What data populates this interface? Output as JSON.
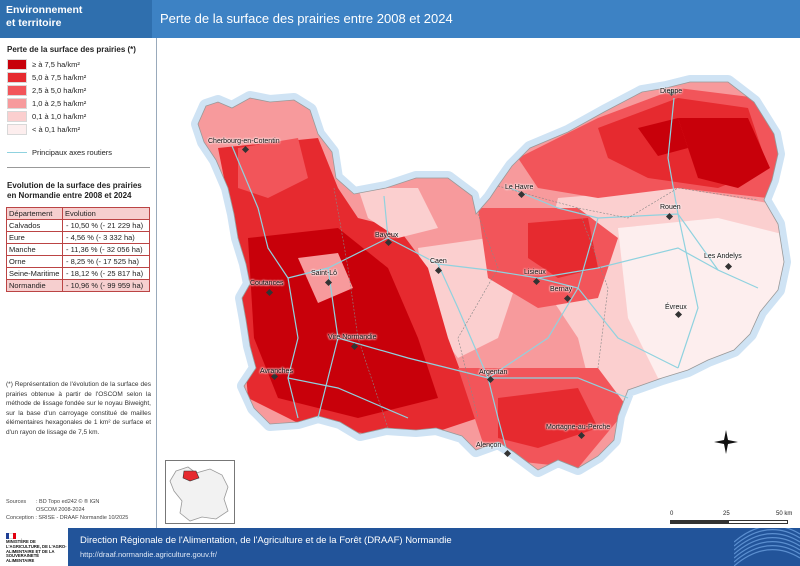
{
  "header": {
    "tag_line1": "Environnement",
    "tag_line2": "et territoire",
    "title": "Perte de la surface des prairies entre 2008 et 2024"
  },
  "legend": {
    "title": "Perte de la surface des prairies (*)",
    "classes": [
      {
        "label": "≥ à 7,5 ha/km²",
        "color": "#c8000a"
      },
      {
        "label": "5,0 à 7,5 ha/km²",
        "color": "#e62a2f"
      },
      {
        "label": "2,5 à 5,0 ha/km²",
        "color": "#f2555a"
      },
      {
        "label": "1,0 à 2,5 ha/km²",
        "color": "#f79a9c"
      },
      {
        "label": "0,1 à 1,0 ha/km²",
        "color": "#fbcfcf"
      },
      {
        "label": "< à 0,1 ha/km²",
        "color": "#fdeeee"
      }
    ],
    "roads_label": "Principaux axes routiers",
    "roads_color": "#8fd2df"
  },
  "evolution": {
    "title": "Evolution de la surface des prairies en Normandie entre 2008 et 2024",
    "headers": [
      "Département",
      "Evolution"
    ],
    "rows": [
      {
        "dept": "Calvados",
        "value": "- 10,50 % (- 21 229 ha)"
      },
      {
        "dept": "Eure",
        "value": "- 4,56 % (- 3 332 ha)"
      },
      {
        "dept": "Manche",
        "value": "- 11,36 % (- 32 056 ha)"
      },
      {
        "dept": "Orne",
        "value": "- 8,25 % (- 17 525 ha)"
      },
      {
        "dept": "Seine-Maritime",
        "value": "- 18,12 % (- 25 817 ha)"
      },
      {
        "dept": "Normandie",
        "value": "- 10,96 % (- 99 959 ha)"
      }
    ]
  },
  "note": "(*) Représentation de l'évolution de la surface des prairies obtenue à partir de l'OSCOM selon la méthode de lissage fondée sur le noyau Biweight, sur la base d'un carroyage constitué de mailles élémentaires hexagonales de 1 km² de surface et d'un rayon de lissage de 7,5 km.",
  "sources": {
    "label": "Sources",
    "line1": ": BD Topo ed242 © ® IGN",
    "line2": "OSCOM 2008-2024",
    "line3": "Conception : SRISE - DRAAF Normandie 10/2025"
  },
  "ministry": "MINISTÈRE DE L'AGRICULTURE, DE L'AGRO-ALIMENTAIRE ET DE LA SOUVERAINETÉ ALIMENTAIRE",
  "footer": {
    "title": "Direction Régionale de l'Alimentation, de l'Agriculture et de la Forêt (DRAAF) Normandie",
    "url": "http://draaf.normandie.agriculture.gouv.fr/"
  },
  "cities": [
    {
      "name": "Dieppe"
    },
    {
      "name": "Cherbourg-en-Cotentin"
    },
    {
      "name": "Le Havre"
    },
    {
      "name": "Rouen"
    },
    {
      "name": "Bayeux"
    },
    {
      "name": "Caen"
    },
    {
      "name": "Lisieux"
    },
    {
      "name": "Les Andelys"
    },
    {
      "name": "Saint-Lô"
    },
    {
      "name": "Coutances"
    },
    {
      "name": "Bernay"
    },
    {
      "name": "Évreux"
    },
    {
      "name": "Vire Normandie"
    },
    {
      "name": "Avranches"
    },
    {
      "name": "Argentan"
    },
    {
      "name": "Mortagne-au-Perche"
    },
    {
      "name": "Alençon"
    }
  ],
  "scale": {
    "zero": "0",
    "mid": "25",
    "max": "50 km"
  }
}
